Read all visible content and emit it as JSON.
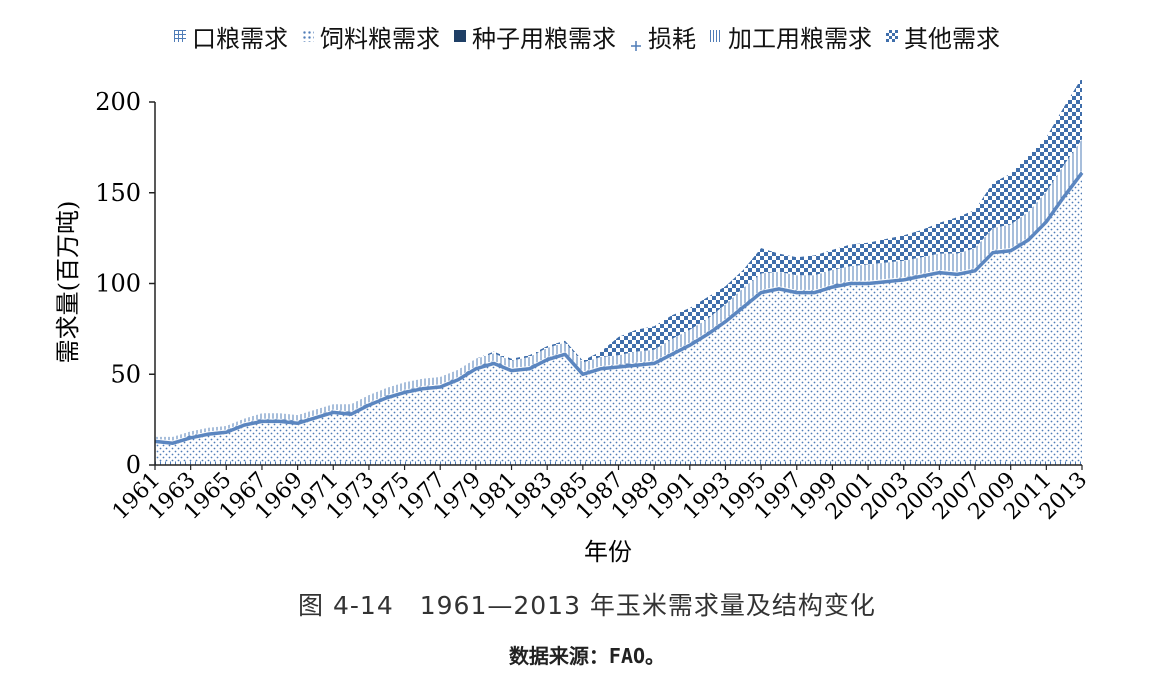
{
  "chart_data": {
    "type": "area",
    "stacked": true,
    "xlabel": "年份",
    "ylabel": "需求量(百万吨)",
    "ylim": [
      0,
      200
    ],
    "yticks": [
      0,
      50,
      100,
      150,
      200
    ],
    "grid": false,
    "legend_position": "top",
    "x": [
      1961,
      1962,
      1963,
      1964,
      1965,
      1966,
      1967,
      1968,
      1969,
      1970,
      1971,
      1972,
      1973,
      1974,
      1975,
      1976,
      1977,
      1978,
      1979,
      1980,
      1981,
      1982,
      1983,
      1984,
      1985,
      1986,
      1987,
      1988,
      1989,
      1990,
      1991,
      1992,
      1993,
      1994,
      1995,
      1996,
      1997,
      1998,
      1999,
      2000,
      2001,
      2002,
      2003,
      2004,
      2005,
      2006,
      2007,
      2008,
      2009,
      2010,
      2011,
      2012,
      2013
    ],
    "xtick_labels": [
      "1961",
      "1963",
      "1965",
      "1967",
      "1969",
      "1971",
      "1973",
      "1975",
      "1977",
      "1979",
      "1981",
      "1983",
      "1985",
      "1987",
      "1989",
      "1991",
      "1993",
      "1995",
      "1997",
      "1999",
      "2001",
      "2003",
      "2005",
      "2007",
      "2009",
      "2011",
      "2013"
    ],
    "series": [
      {
        "name": "口粮需求",
        "pattern": "grid",
        "values": [
          2,
          2,
          2,
          2,
          2,
          2,
          2,
          2,
          2,
          2,
          2,
          2,
          2,
          2,
          2,
          2,
          2,
          2,
          2,
          2,
          2,
          2,
          2,
          2,
          2,
          2,
          2,
          2,
          2,
          2,
          2,
          2,
          2,
          2,
          2,
          2,
          2,
          2,
          2,
          2,
          2,
          2,
          2,
          2,
          2,
          2,
          2,
          2,
          2,
          2,
          2,
          2,
          2
        ]
      },
      {
        "name": "饲料粮需求",
        "pattern": "dots",
        "values": [
          11,
          10,
          13,
          15,
          16,
          20,
          22,
          22,
          21,
          24,
          27,
          26,
          31,
          35,
          38,
          40,
          41,
          45,
          51,
          54,
          50,
          51,
          56,
          59,
          48,
          51,
          52,
          53,
          54,
          59,
          64,
          70,
          77,
          85,
          93,
          95,
          93,
          93,
          96,
          98,
          98,
          99,
          100,
          102,
          104,
          103,
          105,
          115,
          116,
          122,
          132,
          146,
          159
        ]
      },
      {
        "name": "种子用粮需求",
        "pattern": "solid",
        "values": [
          0.5,
          0.5,
          0.5,
          0.5,
          0.5,
          0.5,
          0.5,
          0.5,
          0.5,
          0.5,
          0.5,
          0.5,
          0.5,
          0.5,
          0.5,
          0.5,
          0.5,
          0.5,
          0.5,
          0.5,
          0.5,
          0.5,
          0.5,
          0.5,
          0.5,
          0.5,
          0.5,
          0.5,
          0.5,
          0.5,
          0.5,
          0.5,
          0.5,
          0.5,
          0.5,
          0.5,
          0.5,
          0.5,
          0.5,
          0.5,
          0.5,
          0.5,
          0.5,
          0.5,
          0.5,
          0.5,
          0.5,
          0.5,
          0.5,
          0.5,
          0.5,
          0.5,
          0.5
        ]
      },
      {
        "name": "损耗",
        "pattern": "plus",
        "values": [
          1,
          1,
          1,
          1,
          1,
          1,
          1,
          1,
          1,
          1,
          1,
          1,
          1,
          1,
          1,
          1,
          1,
          1,
          1,
          1,
          1,
          1,
          1,
          1,
          1,
          1,
          1,
          1,
          1,
          1,
          1,
          1,
          1,
          1,
          1,
          1,
          1,
          1,
          1,
          1,
          1,
          1,
          1,
          1,
          1,
          1,
          1,
          1,
          1,
          1,
          1,
          1,
          1
        ]
      },
      {
        "name": "加工用粮需求",
        "pattern": "vlines",
        "values": [
          1,
          2,
          2,
          2,
          2,
          2,
          3,
          3,
          3,
          3,
          3,
          4,
          4,
          4,
          4,
          4,
          4,
          4,
          4,
          4,
          4,
          5,
          5,
          5,
          5,
          5,
          5,
          6,
          6,
          7,
          7,
          7,
          8,
          9,
          9,
          8,
          8,
          8,
          8,
          8,
          9,
          9,
          9,
          9,
          9,
          10,
          11,
          12,
          13,
          14,
          15,
          16,
          17
        ]
      },
      {
        "name": "其他需求",
        "pattern": "checker",
        "values": [
          0,
          0,
          0,
          0,
          0,
          0,
          0,
          0,
          0,
          0,
          0,
          0,
          0,
          0,
          0,
          0,
          0,
          0,
          0,
          1,
          1,
          1,
          1,
          1,
          1,
          3,
          10,
          12,
          13,
          13,
          12,
          12,
          10,
          10,
          14,
          10,
          10,
          11,
          11,
          12,
          12,
          13,
          14,
          15,
          17,
          20,
          21,
          25,
          28,
          31,
          30,
          32,
          34
        ]
      }
    ]
  },
  "legend": {
    "items": [
      {
        "label": "口粮需求"
      },
      {
        "label": "饲料粮需求"
      },
      {
        "label": "种子用粮需求"
      },
      {
        "label": "损耗"
      },
      {
        "label": "加工用粮需求"
      },
      {
        "label": "其他需求"
      }
    ]
  },
  "caption": "图 4-14　1961—2013 年玉米需求量及结构变化",
  "source": "数据来源：FAO。",
  "colors": {
    "primary": "#4f7cb7",
    "line": "#5b86c0",
    "text": "#111111"
  }
}
